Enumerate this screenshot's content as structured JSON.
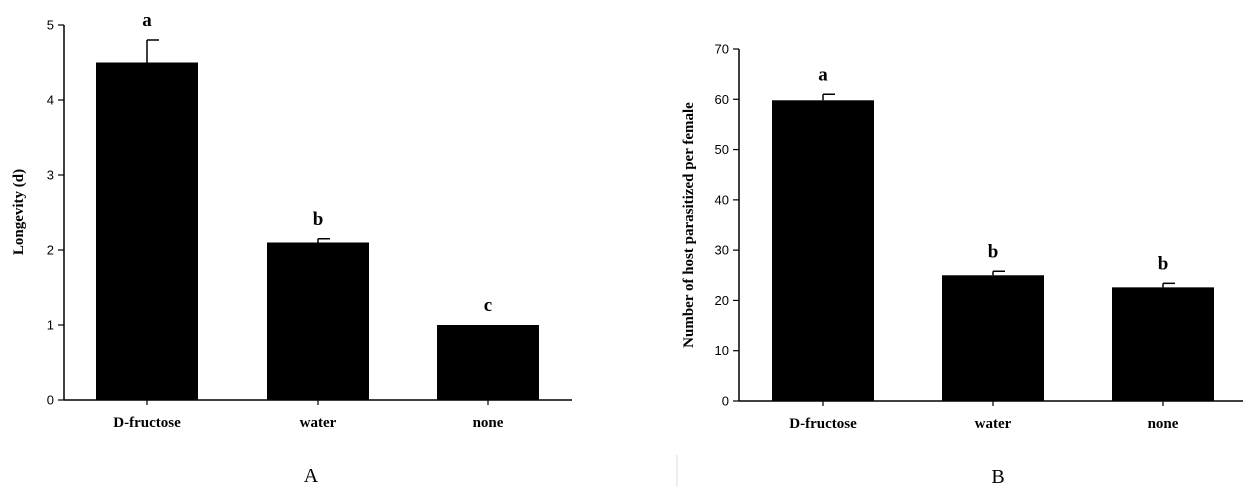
{
  "colors": {
    "bar": "#000000",
    "axis": "#000000",
    "background": "#ffffff",
    "divider": "#dddddd"
  },
  "chart_data": [
    {
      "type": "bar",
      "panel_label": "A",
      "categories": [
        "D-fructose",
        "water",
        "none"
      ],
      "values": [
        4.5,
        2.1,
        1.0
      ],
      "error": [
        0.3,
        0.05,
        0.0
      ],
      "significance": [
        "a",
        "b",
        "c"
      ],
      "title": "",
      "xlabel": "",
      "ylabel": "Longevity (d)",
      "ylim": [
        0,
        5
      ],
      "yticks": [
        0,
        1,
        2,
        3,
        4,
        5
      ],
      "grid": false
    },
    {
      "type": "bar",
      "panel_label": "B",
      "categories": [
        "D-fructose",
        "water",
        "none"
      ],
      "values": [
        59.8,
        25.0,
        22.6
      ],
      "error": [
        1.2,
        0.8,
        0.8
      ],
      "significance": [
        "a",
        "b",
        "b"
      ],
      "title": "",
      "xlabel": "",
      "ylabel": "Number of host parasitized per female",
      "ylim": [
        0,
        70
      ],
      "yticks": [
        0,
        10,
        20,
        30,
        40,
        50,
        60,
        70
      ],
      "grid": false
    }
  ]
}
